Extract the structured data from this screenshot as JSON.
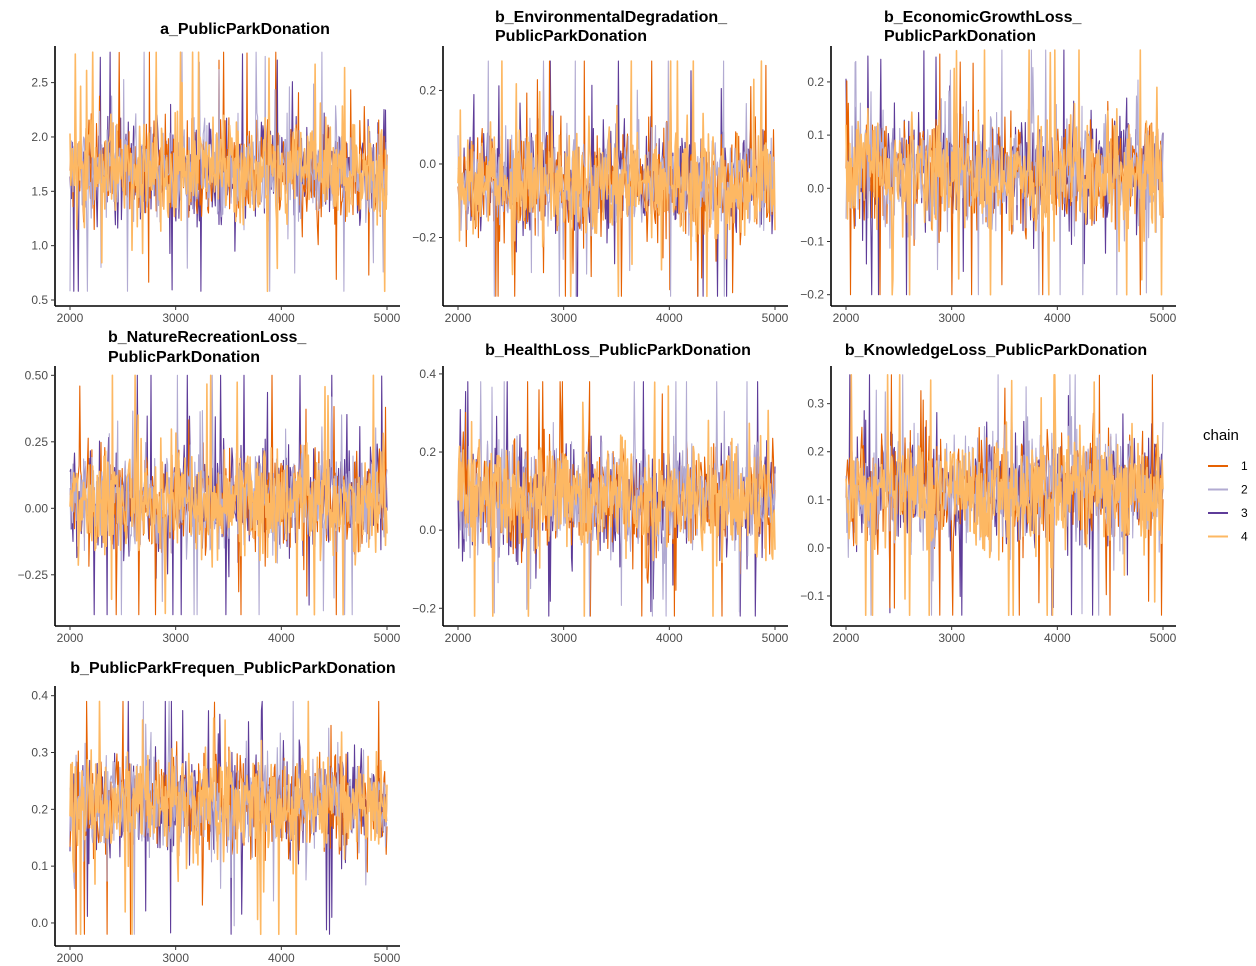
{
  "figure": {
    "legend_title": "chain"
  },
  "chart_data": [
    {
      "type": "line",
      "title": "a_PublicParkDonation",
      "title_lines": [
        "a_PublicParkDonation"
      ],
      "xlim": [
        2000,
        5000
      ],
      "ylim": [
        0.5,
        2.8
      ],
      "x_ticks": [
        2000,
        3000,
        4000,
        5000
      ],
      "y_ticks": [
        0.5,
        1.0,
        1.5,
        2.0,
        2.5
      ],
      "y_tick_labels": [
        "0.5",
        "1.0",
        "1.5",
        "2.0",
        "2.5"
      ],
      "center": 1.7,
      "inner_half": 0.35,
      "extreme_low": 0.58,
      "extreme_high": 2.78,
      "xlabel": "",
      "ylabel": ""
    },
    {
      "type": "line",
      "title": "b_EnvironmentalDegradation_ PublicParkDonation",
      "title_lines": [
        "b_EnvironmentalDegradation_",
        "PublicParkDonation"
      ],
      "xlim": [
        2000,
        5000
      ],
      "ylim": [
        -0.37,
        0.31
      ],
      "x_ticks": [
        2000,
        3000,
        4000,
        5000
      ],
      "y_ticks": [
        -0.2,
        0.0,
        0.2
      ],
      "y_tick_labels": [
        "−0.2",
        "0.0",
        "0.2"
      ],
      "center": -0.05,
      "inner_half": 0.11,
      "extreme_low": -0.36,
      "extreme_high": 0.28,
      "xlabel": "",
      "ylabel": ""
    },
    {
      "type": "line",
      "title": "b_EconomicGrowthLoss_ PublicParkDonation",
      "title_lines": [
        "b_EconomicGrowthLoss_",
        "PublicParkDonation"
      ],
      "xlim": [
        2000,
        5000
      ],
      "ylim": [
        -0.21,
        0.26
      ],
      "x_ticks": [
        2000,
        3000,
        4000,
        5000
      ],
      "y_ticks": [
        -0.2,
        -0.1,
        0.0,
        0.1,
        0.2
      ],
      "y_tick_labels": [
        "−0.2",
        "−0.1",
        "0.0",
        "0.1",
        "0.2"
      ],
      "center": 0.03,
      "inner_half": 0.08,
      "extreme_low": -0.2,
      "extreme_high": 0.26,
      "xlabel": "",
      "ylabel": ""
    },
    {
      "type": "line",
      "title": "b_NatureRecreationLoss_ PublicParkDonation",
      "title_lines": [
        "b_NatureRecreationLoss_",
        "PublicParkDonation"
      ],
      "xlim": [
        2000,
        5000
      ],
      "ylim": [
        -0.42,
        0.52
      ],
      "x_ticks": [
        2000,
        3000,
        4000,
        5000
      ],
      "y_ticks": [
        -0.25,
        0.0,
        0.25,
        0.5
      ],
      "y_tick_labels": [
        "−0.25",
        "0.00",
        "0.25",
        "0.50"
      ],
      "center": 0.03,
      "inner_half": 0.15,
      "extreme_low": -0.4,
      "extreme_high": 0.5,
      "xlabel": "",
      "ylabel": ""
    },
    {
      "type": "line",
      "title": "b_HealthLoss_PublicParkDonation",
      "title_lines": [
        "b_HealthLoss_PublicParkDonation"
      ],
      "xlim": [
        2000,
        5000
      ],
      "ylim": [
        -0.23,
        0.41
      ],
      "x_ticks": [
        2000,
        3000,
        4000,
        5000
      ],
      "y_ticks": [
        -0.2,
        0.0,
        0.2,
        0.4
      ],
      "y_tick_labels": [
        "−0.2",
        "0.0",
        "0.2",
        "0.4"
      ],
      "center": 0.08,
      "inner_half": 0.11,
      "extreme_low": -0.22,
      "extreme_high": 0.38,
      "xlabel": "",
      "ylabel": ""
    },
    {
      "type": "line",
      "title": "b_KnowledgeLoss_PublicParkDonation",
      "title_lines": [
        "b_KnowledgeLoss_PublicParkDonation"
      ],
      "xlim": [
        2000,
        5000
      ],
      "ylim": [
        -0.15,
        0.37
      ],
      "x_ticks": [
        2000,
        3000,
        4000,
        5000
      ],
      "y_ticks": [
        -0.1,
        0.0,
        0.1,
        0.2,
        0.3
      ],
      "y_tick_labels": [
        "−0.1",
        "0.0",
        "0.1",
        "0.2",
        "0.3"
      ],
      "center": 0.12,
      "inner_half": 0.09,
      "extreme_low": -0.14,
      "extreme_high": 0.36,
      "xlabel": "",
      "ylabel": ""
    },
    {
      "type": "line",
      "title": "b_PublicParkFrequen_PublicParkDonation",
      "title_lines": [
        "b_PublicParkFrequen_PublicParkDonation"
      ],
      "xlim": [
        2000,
        5000
      ],
      "ylim": [
        -0.03,
        0.41
      ],
      "x_ticks": [
        2000,
        3000,
        4000,
        5000
      ],
      "y_ticks": [
        0.0,
        0.1,
        0.2,
        0.3,
        0.4
      ],
      "y_tick_labels": [
        "0.0",
        "0.1",
        "0.2",
        "0.3",
        "0.4"
      ],
      "center": 0.21,
      "inner_half": 0.07,
      "extreme_low": -0.02,
      "extreme_high": 0.39,
      "xlabel": "",
      "ylabel": ""
    }
  ],
  "legend": {
    "entries": [
      {
        "label": "1",
        "color": "#E66101"
      },
      {
        "label": "2",
        "color": "#B2ABD2"
      },
      {
        "label": "3",
        "color": "#5E3C99"
      },
      {
        "label": "4",
        "color": "#FDB863"
      }
    ],
    "placement": "right"
  },
  "series_order": [
    2,
    0,
    1,
    3
  ]
}
